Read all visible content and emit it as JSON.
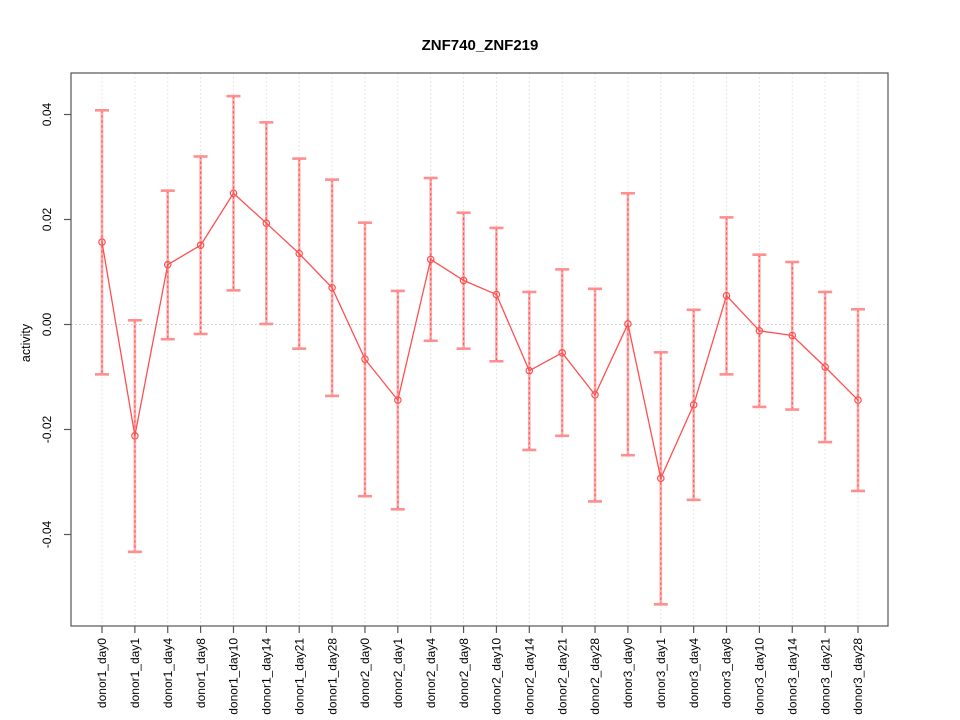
{
  "page": {
    "background": "#FFFFFF"
  },
  "chart_data": {
    "type": "line",
    "title": "ZNF740_ZNF219",
    "ylabel": "activity",
    "xlabel": "",
    "legend_position": "none",
    "point_style": "open-circle",
    "grid": {
      "vertical_dotted": true,
      "zero_line_dotted": true
    },
    "categories": [
      "donor1_day0",
      "donor1_day1",
      "donor1_day4",
      "donor1_day8",
      "donor1_day10",
      "donor1_day14",
      "donor1_day21",
      "donor1_day28",
      "donor2_day0",
      "donor2_day1",
      "donor2_day4",
      "donor2_day8",
      "donor2_day10",
      "donor2_day14",
      "donor2_day21",
      "donor2_day28",
      "donor3_day0",
      "donor3_day1",
      "donor3_day4",
      "donor3_day8",
      "donor3_day10",
      "donor3_day14",
      "donor3_day21",
      "donor3_day28"
    ],
    "series": [
      {
        "name": "activity",
        "values": [
          0.0157,
          -0.0212,
          0.0114,
          0.0151,
          0.025,
          0.0193,
          0.0135,
          0.007,
          -0.0066,
          -0.0144,
          0.0124,
          0.0084,
          0.0057,
          -0.0088,
          -0.0054,
          -0.0134,
          0.0001,
          -0.0293,
          -0.0153,
          0.0055,
          -0.0012,
          -0.0021,
          -0.0081,
          -0.0144
        ],
        "error_high": [
          0.0408,
          0.0008,
          0.0255,
          0.032,
          0.0435,
          0.0385,
          0.0316,
          0.0276,
          0.0194,
          0.0064,
          0.0279,
          0.0213,
          0.0184,
          0.0062,
          0.0105,
          0.0068,
          0.025,
          -0.0053,
          0.0028,
          0.0204,
          0.0133,
          0.0119,
          0.0062,
          0.0029
        ],
        "error_low": [
          -0.0095,
          -0.0433,
          -0.0028,
          -0.0018,
          0.0065,
          0.0001,
          -0.0046,
          -0.0136,
          -0.0327,
          -0.0352,
          -0.0031,
          -0.0046,
          -0.007,
          -0.0239,
          -0.0212,
          -0.0337,
          -0.0249,
          -0.0533,
          -0.0334,
          -0.0095,
          -0.0157,
          -0.0162,
          -0.0224,
          -0.0317
        ]
      }
    ],
    "yticks": [
      0.04,
      0.02,
      0.0,
      -0.02,
      -0.04
    ],
    "ytick_labels": [
      "0.04",
      "0.02",
      "0.00",
      "-0.02",
      "-0.04"
    ],
    "ylim": [
      -0.0574,
      0.0479
    ],
    "colors": {
      "series_line": "#FF5050",
      "error_bar_stem": "#FFABAB",
      "error_bar_dash": "#FF5555",
      "error_bar_cap": "#FF8E8E",
      "gridline": "#E0E0E0",
      "zero_line": "#C9C9C9",
      "axis_box": "#555555",
      "text": "#000000"
    }
  }
}
